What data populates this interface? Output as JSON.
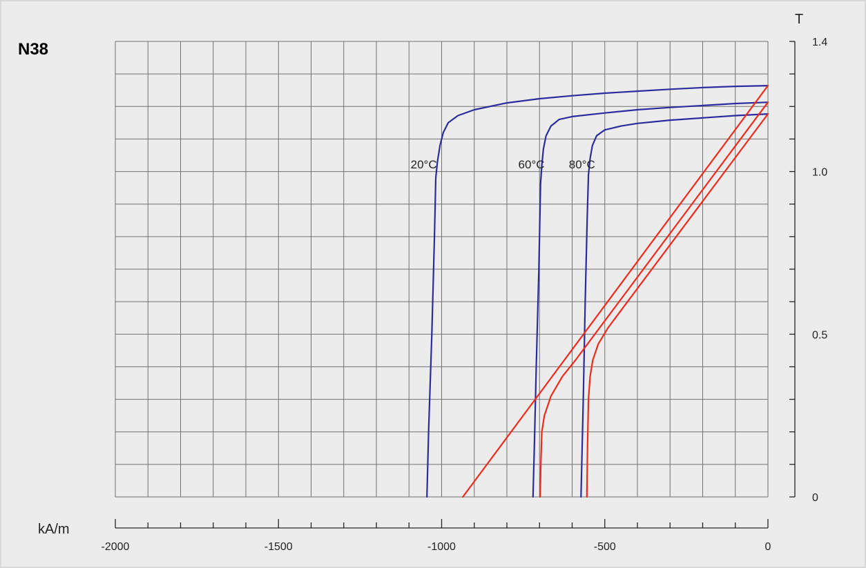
{
  "chart_data": {
    "type": "line",
    "title": "N38",
    "xlabel": "kA/m",
    "ylabel": "T",
    "xlim": [
      -2000,
      0
    ],
    "ylim": [
      0,
      1.4
    ],
    "x_tick_labels": [
      {
        "value": -2000,
        "label": "-2000"
      },
      {
        "value": -1500,
        "label": "-1500"
      },
      {
        "value": -1000,
        "label": "-1000"
      },
      {
        "value": -500,
        "label": "-500"
      },
      {
        "value": 0,
        "label": "0"
      }
    ],
    "y_tick_labels": [
      {
        "value": 0,
        "label": "0"
      },
      {
        "value": 0.5,
        "label": "0.5"
      },
      {
        "value": 1.0,
        "label": "1.0"
      },
      {
        "value": 1.4,
        "label": "1.4"
      }
    ],
    "grid": true,
    "colors": {
      "intrinsic": "#2b2b9e",
      "normal": "#ee2a1a"
    },
    "series": [
      {
        "name": "20°C",
        "kind": "intrinsic",
        "label_at": [
          -1095,
          1.01
        ],
        "points": [
          [
            0,
            1.264
          ],
          [
            -100,
            1.262
          ],
          [
            -200,
            1.258
          ],
          [
            -300,
            1.253
          ],
          [
            -400,
            1.247
          ],
          [
            -500,
            1.241
          ],
          [
            -600,
            1.233
          ],
          [
            -700,
            1.224
          ],
          [
            -800,
            1.211
          ],
          [
            -900,
            1.19
          ],
          [
            -950,
            1.172
          ],
          [
            -980,
            1.15
          ],
          [
            -995,
            1.12
          ],
          [
            -1005,
            1.08
          ],
          [
            -1013,
            1.03
          ],
          [
            -1018,
            0.98
          ],
          [
            -1022,
            0.8
          ],
          [
            -1030,
            0.5
          ],
          [
            -1040,
            0.2
          ],
          [
            -1045,
            0
          ]
        ]
      },
      {
        "name": "60°C",
        "kind": "intrinsic",
        "label_at": [
          -765,
          1.01
        ],
        "points": [
          [
            0,
            1.213
          ],
          [
            -100,
            1.209
          ],
          [
            -200,
            1.203
          ],
          [
            -300,
            1.197
          ],
          [
            -400,
            1.19
          ],
          [
            -500,
            1.18
          ],
          [
            -600,
            1.169
          ],
          [
            -640,
            1.16
          ],
          [
            -665,
            1.14
          ],
          [
            -680,
            1.11
          ],
          [
            -688,
            1.07
          ],
          [
            -693,
            1.02
          ],
          [
            -697,
            0.96
          ],
          [
            -702,
            0.7
          ],
          [
            -710,
            0.4
          ],
          [
            -716,
            0.15
          ],
          [
            -720,
            0
          ]
        ]
      },
      {
        "name": "80°C",
        "kind": "intrinsic",
        "label_at": [
          -610,
          1.01
        ],
        "points": [
          [
            0,
            1.177
          ],
          [
            -100,
            1.172
          ],
          [
            -200,
            1.165
          ],
          [
            -300,
            1.158
          ],
          [
            -400,
            1.148
          ],
          [
            -450,
            1.14
          ],
          [
            -500,
            1.128
          ],
          [
            -525,
            1.11
          ],
          [
            -538,
            1.08
          ],
          [
            -545,
            1.04
          ],
          [
            -550,
            0.99
          ],
          [
            -554,
            0.85
          ],
          [
            -560,
            0.6
          ],
          [
            -566,
            0.3
          ],
          [
            -573,
            0
          ]
        ]
      },
      {
        "kind": "normal",
        "points": [
          [
            0,
            1.264
          ],
          [
            -935,
            0
          ]
        ]
      },
      {
        "kind": "normal",
        "points": [
          [
            0,
            1.213
          ],
          [
            -590,
            0.42
          ],
          [
            -630,
            0.37
          ],
          [
            -665,
            0.31
          ],
          [
            -685,
            0.25
          ],
          [
            -693,
            0.2
          ],
          [
            -696,
            0.1
          ],
          [
            -698,
            0
          ]
        ]
      },
      {
        "kind": "normal",
        "points": [
          [
            0,
            1.177
          ],
          [
            -490,
            0.52
          ],
          [
            -520,
            0.47
          ],
          [
            -537,
            0.42
          ],
          [
            -545,
            0.37
          ],
          [
            -550,
            0.3
          ],
          [
            -553,
            0.15
          ],
          [
            -555,
            0
          ]
        ]
      }
    ]
  }
}
